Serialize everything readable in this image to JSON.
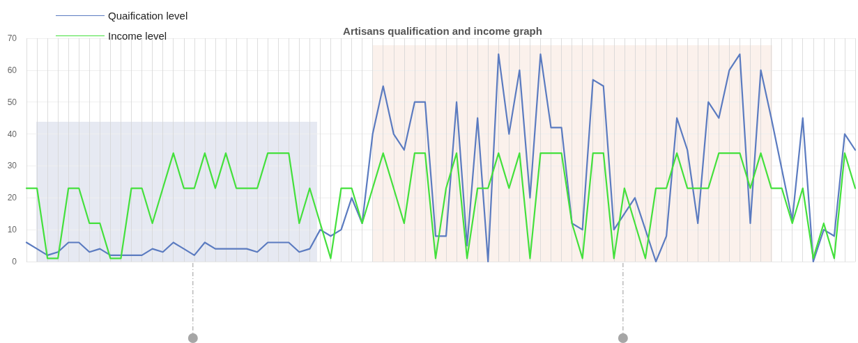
{
  "chart_data": {
    "type": "line",
    "title": "Artisans qualification and income graph",
    "categories": [
      null,
      null,
      null,
      null,
      null,
      null,
      null,
      null,
      null,
      null,
      null,
      null,
      null,
      null,
      null,
      null,
      null,
      null,
      null,
      null,
      null,
      null,
      null,
      null,
      null,
      null,
      null,
      null,
      null,
      null,
      null,
      null,
      null,
      null,
      null,
      null,
      null,
      null,
      null,
      null,
      null,
      null,
      null,
      null,
      null,
      null,
      null,
      null,
      null,
      null,
      null,
      null,
      null,
      null,
      null,
      null,
      null,
      null,
      null,
      null,
      null,
      null,
      null,
      null,
      null,
      null,
      null,
      null,
      null,
      null,
      null,
      null,
      null,
      null,
      null,
      null,
      null,
      null,
      null,
      null
    ],
    "series": [
      {
        "name": "Quaification level",
        "color": "#5b7bc0",
        "values": [
          6,
          4,
          2,
          3,
          6,
          6,
          3,
          4,
          2,
          2,
          2,
          2,
          4,
          3,
          6,
          4,
          2,
          6,
          4,
          4,
          4,
          4,
          3,
          6,
          6,
          6,
          3,
          4,
          10,
          8,
          10,
          20,
          12,
          40,
          55,
          40,
          35,
          50,
          50,
          8,
          8,
          50,
          5,
          45,
          0,
          65,
          40,
          60,
          20,
          65,
          42,
          42,
          12,
          10,
          57,
          55,
          10,
          15,
          20,
          10,
          0,
          8,
          45,
          35,
          12,
          50,
          45,
          60,
          65,
          12,
          60,
          45,
          29,
          13,
          45,
          0,
          10,
          8,
          40,
          35
        ]
      },
      {
        "name": "Income level",
        "color": "#44e03c",
        "values": [
          23,
          23,
          1,
          1,
          23,
          23,
          12,
          12,
          1,
          1,
          23,
          23,
          12,
          23,
          34,
          23,
          23,
          34,
          23,
          34,
          23,
          23,
          23,
          34,
          34,
          34,
          12,
          23,
          12,
          1,
          23,
          23,
          12,
          23,
          34,
          23,
          12,
          34,
          34,
          1,
          23,
          34,
          1,
          23,
          23,
          34,
          23,
          34,
          1,
          34,
          34,
          34,
          12,
          1,
          34,
          34,
          1,
          23,
          12,
          1,
          23,
          23,
          34,
          23,
          23,
          23,
          34,
          34,
          34,
          23,
          34,
          23,
          23,
          12,
          23,
          1,
          12,
          1,
          34,
          23
        ]
      }
    ],
    "ylim": [
      0,
      70
    ],
    "yticks": [
      0,
      10,
      20,
      30,
      40,
      50,
      60,
      70
    ],
    "grid": true,
    "legend": "top left",
    "tick_labels": "y",
    "marker": "none",
    "line_style": "solid"
  }
}
